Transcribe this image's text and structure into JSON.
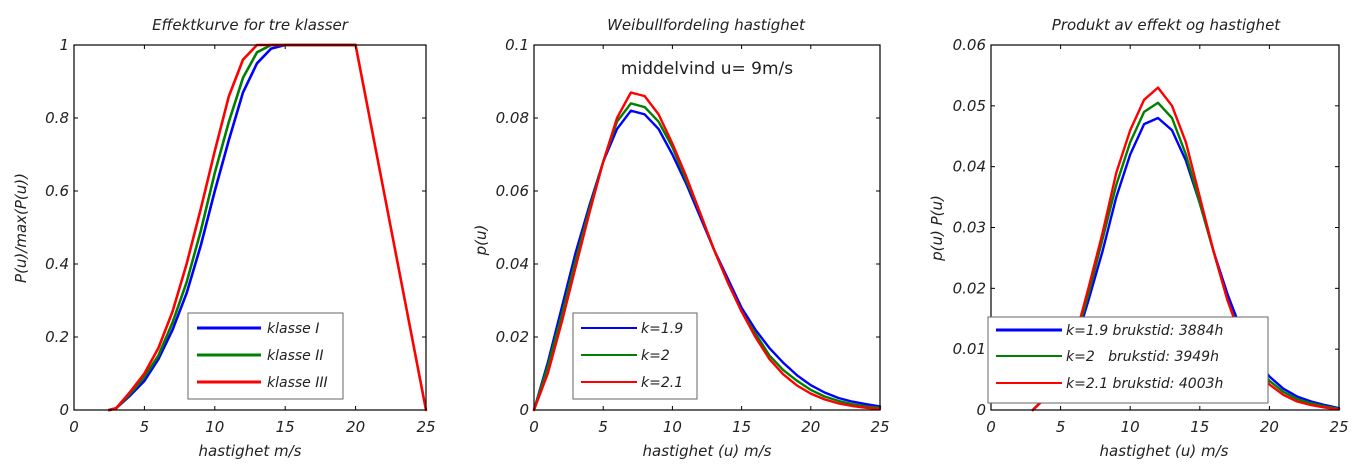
{
  "chart_data": [
    {
      "type": "line",
      "title": "Effektkurve for tre klasser",
      "xlabel": "hastighet m/s",
      "ylabel": "P(u)/max(P(u))",
      "xlim": [
        0,
        25
      ],
      "ylim": [
        0,
        1
      ],
      "xticks": [
        "0",
        "5",
        "10",
        "15",
        "20",
        "25"
      ],
      "yticks": [
        "0",
        "0.2",
        "0.4",
        "0.6",
        "0.8",
        "1"
      ],
      "legend_position": "bottom-center",
      "series": [
        {
          "name": "klasse I",
          "color": "#0000ff",
          "x": [
            2.5,
            3,
            4,
            5,
            6,
            7,
            8,
            9,
            10,
            11,
            12,
            13,
            14,
            15,
            20
          ],
          "y": [
            0,
            0.005,
            0.04,
            0.08,
            0.14,
            0.22,
            0.32,
            0.45,
            0.6,
            0.74,
            0.87,
            0.95,
            0.99,
            1.0,
            1.0
          ]
        },
        {
          "name": "klasse II",
          "color": "#008000",
          "x": [
            2.5,
            3,
            4,
            5,
            6,
            7,
            8,
            9,
            10,
            11,
            12,
            13,
            14,
            20
          ],
          "y": [
            0,
            0.005,
            0.045,
            0.09,
            0.15,
            0.24,
            0.35,
            0.49,
            0.65,
            0.79,
            0.91,
            0.98,
            1.0,
            1.0
          ]
        },
        {
          "name": "klasse III",
          "color": "#ff0000",
          "x": [
            2.5,
            3,
            4,
            5,
            6,
            7,
            8,
            9,
            10,
            11,
            12,
            13,
            20,
            25
          ],
          "y": [
            0,
            0.005,
            0.05,
            0.1,
            0.17,
            0.27,
            0.4,
            0.55,
            0.71,
            0.86,
            0.96,
            1.0,
            1.0,
            0.0
          ]
        }
      ]
    },
    {
      "type": "line",
      "title": "Weibullfordeling hastighet",
      "annotation": "middelvind u= 9m/s",
      "xlabel": "hastighet (u) m/s",
      "ylabel": "p(u)",
      "xlim": [
        0,
        25
      ],
      "ylim": [
        0,
        0.1
      ],
      "xticks": [
        "0",
        "5",
        "10",
        "15",
        "20",
        "25"
      ],
      "yticks": [
        "0",
        "0.02",
        "0.04",
        "0.06",
        "0.08",
        "0.1"
      ],
      "legend_position": "bottom-left",
      "series": [
        {
          "name": "k=1.9",
          "color": "#0000ff",
          "x": [
            0,
            1,
            2,
            3,
            4,
            5,
            6,
            7,
            8,
            9,
            10,
            11,
            12,
            13,
            14,
            15,
            16,
            17,
            18,
            19,
            20,
            21,
            22,
            23,
            24,
            25
          ],
          "y": [
            0,
            0.013,
            0.028,
            0.043,
            0.056,
            0.068,
            0.077,
            0.082,
            0.081,
            0.077,
            0.07,
            0.062,
            0.053,
            0.044,
            0.036,
            0.028,
            0.022,
            0.017,
            0.013,
            0.0095,
            0.0068,
            0.0048,
            0.0033,
            0.0023,
            0.0016,
            0.001
          ]
        },
        {
          "name": "k=2",
          "color": "#008000",
          "x": [
            0,
            1,
            2,
            3,
            4,
            5,
            6,
            7,
            8,
            9,
            10,
            11,
            12,
            13,
            14,
            15,
            16,
            17,
            18,
            19,
            20,
            21,
            22,
            23,
            24,
            25
          ],
          "y": [
            0,
            0.012,
            0.026,
            0.041,
            0.055,
            0.068,
            0.079,
            0.084,
            0.083,
            0.079,
            0.072,
            0.063,
            0.054,
            0.044,
            0.035,
            0.027,
            0.021,
            0.015,
            0.011,
            0.008,
            0.0055,
            0.0037,
            0.0025,
            0.0016,
            0.001,
            0.0006
          ]
        },
        {
          "name": "k=2.1",
          "color": "#ff0000",
          "x": [
            0,
            1,
            2,
            3,
            4,
            5,
            6,
            7,
            8,
            9,
            10,
            11,
            12,
            13,
            14,
            15,
            16,
            17,
            18,
            19,
            20,
            21,
            22,
            23,
            24,
            25
          ],
          "y": [
            0,
            0.01,
            0.024,
            0.039,
            0.054,
            0.068,
            0.08,
            0.087,
            0.086,
            0.081,
            0.073,
            0.064,
            0.054,
            0.044,
            0.035,
            0.027,
            0.02,
            0.014,
            0.0098,
            0.0067,
            0.0045,
            0.0029,
            0.0018,
            0.0011,
            0.0006,
            0.0003
          ]
        }
      ]
    },
    {
      "type": "line",
      "title": "Produkt av effekt og hastighet",
      "xlabel": "hastighet (u) m/s",
      "ylabel": "p(u) P(u)",
      "xlim": [
        0,
        25
      ],
      "ylim": [
        0,
        0.06
      ],
      "xticks": [
        "0",
        "5",
        "10",
        "15",
        "20",
        "25"
      ],
      "yticks": [
        "0",
        "0.01",
        "0.02",
        "0.03",
        "0.04",
        "0.05",
        "0.06"
      ],
      "legend_position": "bottom-left",
      "series": [
        {
          "name": "k=1.9",
          "label": "k=1.9 brukstid: 3884h",
          "color": "#0000ff",
          "x": [
            3,
            4,
            5,
            6,
            7,
            8,
            9,
            10,
            11,
            12,
            13,
            14,
            15,
            16,
            17,
            18,
            19,
            20,
            21,
            22,
            23,
            24,
            25
          ],
          "y": [
            0,
            0.0022,
            0.0055,
            0.0105,
            0.018,
            0.026,
            0.035,
            0.042,
            0.047,
            0.048,
            0.046,
            0.041,
            0.034,
            0.026,
            0.019,
            0.013,
            0.0085,
            0.0055,
            0.0035,
            0.0022,
            0.0014,
            0.0008,
            0.0003
          ]
        },
        {
          "name": "k=2",
          "label": "k=2   brukstid: 3949h",
          "color": "#008000",
          "x": [
            3,
            4,
            5,
            6,
            7,
            8,
            9,
            10,
            11,
            12,
            13,
            14,
            15,
            16,
            17,
            18,
            19,
            20,
            21,
            22,
            23,
            24,
            25
          ],
          "y": [
            0,
            0.0023,
            0.0058,
            0.011,
            0.019,
            0.028,
            0.037,
            0.044,
            0.049,
            0.0505,
            0.048,
            0.042,
            0.034,
            0.026,
            0.018,
            0.012,
            0.0078,
            0.0048,
            0.003,
            0.0018,
            0.0011,
            0.0006,
            0.0002
          ]
        },
        {
          "name": "k=2.1",
          "label": "k=2.1 brukstid: 4003h",
          "color": "#ff0000",
          "x": [
            3,
            4,
            5,
            6,
            7,
            8,
            9,
            10,
            11,
            12,
            13,
            14,
            15,
            16,
            17,
            18,
            19,
            20,
            21,
            22,
            23,
            24,
            25
          ],
          "y": [
            0,
            0.0022,
            0.0058,
            0.0115,
            0.02,
            0.029,
            0.039,
            0.046,
            0.051,
            0.053,
            0.05,
            0.044,
            0.035,
            0.026,
            0.018,
            0.0115,
            0.0072,
            0.0042,
            0.0025,
            0.0014,
            0.0008,
            0.0004,
            0.0001
          ]
        }
      ]
    }
  ]
}
